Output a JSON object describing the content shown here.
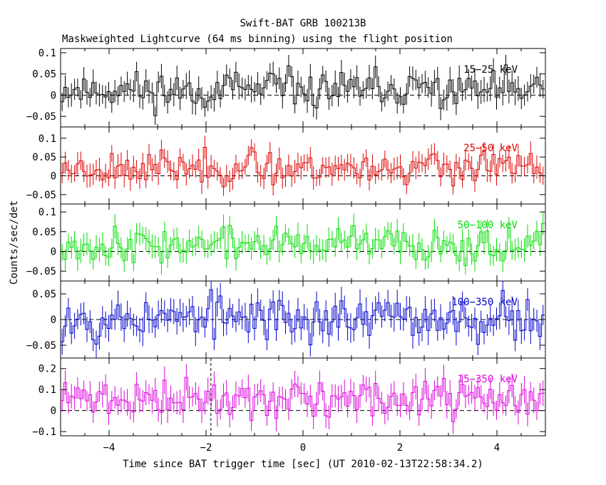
{
  "header": {
    "title": "Swift-BAT GRB 100213B",
    "subtitle": "Maskweighted Lightcurve (64 ms binning) using the flight position"
  },
  "chart_data": {
    "type": "line",
    "style": "step",
    "xlabel": "Time since BAT trigger time [sec] (UT 2010-02-13T22:58:34.2)",
    "ylabel": "Counts/sec/det",
    "xlim": [
      -5,
      5
    ],
    "x_ticks": [
      "−4",
      "−2",
      "0",
      "2",
      "4"
    ],
    "x_tick_values": [
      -4,
      -2,
      0,
      2,
      4
    ],
    "bin_width_sec": 0.064,
    "marker_line_x": -1.9,
    "grid": false,
    "panels": [
      {
        "label": "15−25 keV",
        "color": "#000000",
        "ylim": [
          -0.075,
          0.11
        ],
        "y_ticks": [
          "−0.05",
          "0",
          "0.05",
          "0.1"
        ],
        "y_tick_values": [
          -0.05,
          0,
          0.05,
          0.1
        ],
        "mean": 0.012,
        "amp": 0.022,
        "err": 0.026,
        "seed": 11
      },
      {
        "label": "25−50 keV",
        "color": "#dd0000",
        "ylim": [
          -0.075,
          0.13
        ],
        "y_ticks": [
          "−0.05",
          "0",
          "0.05",
          "0.1"
        ],
        "y_tick_values": [
          -0.05,
          0,
          0.05,
          0.1
        ],
        "mean": 0.022,
        "amp": 0.022,
        "err": 0.027,
        "seed": 23
      },
      {
        "label": "50−100 keV",
        "color": "#00dd00",
        "ylim": [
          -0.075,
          0.12
        ],
        "y_ticks": [
          "−0.05",
          "0",
          "0.05",
          "0.1"
        ],
        "y_tick_values": [
          -0.05,
          0,
          0.05,
          0.1
        ],
        "mean": 0.018,
        "amp": 0.022,
        "err": 0.026,
        "seed": 37
      },
      {
        "label": "100−350 keV",
        "color": "#0000cc",
        "ylim": [
          -0.075,
          0.075
        ],
        "y_ticks": [
          "−0.05",
          "0",
          "0.05"
        ],
        "y_tick_values": [
          -0.05,
          0,
          0.05
        ],
        "mean": 0.003,
        "amp": 0.022,
        "err": 0.024,
        "seed": 53
      },
      {
        "label": "15−350 keV",
        "color": "#dd00dd",
        "ylim": [
          -0.12,
          0.25
        ],
        "y_ticks": [
          "−0.1",
          "0",
          "0.1",
          "0.2"
        ],
        "y_tick_values": [
          -0.1,
          0,
          0.1,
          0.2
        ],
        "mean": 0.055,
        "amp": 0.045,
        "err": 0.055,
        "seed": 71
      }
    ]
  }
}
